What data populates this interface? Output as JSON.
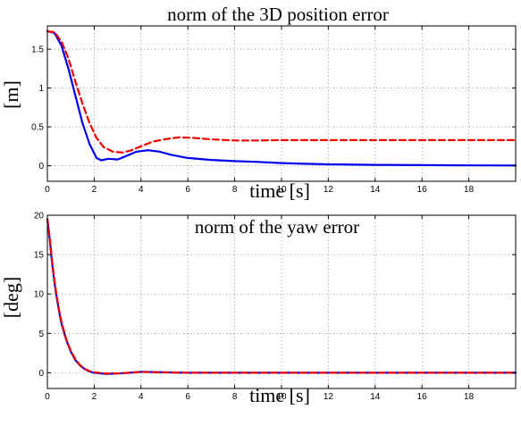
{
  "chart_data": [
    {
      "type": "line",
      "title": "norm of the 3D position error",
      "xlabel": "time [s]",
      "ylabel": "[m]",
      "xlim": [
        0,
        20
      ],
      "ylim": [
        -0.2,
        1.8
      ],
      "xticks": [
        0,
        2,
        4,
        6,
        8,
        10,
        12,
        14,
        16,
        18
      ],
      "yticks": [
        0,
        0.5,
        1,
        1.5
      ],
      "ytick_labels": [
        "0",
        "0.5",
        "1",
        "1.5"
      ],
      "grid": true,
      "series": [
        {
          "color": "#0000ee",
          "style": "solid",
          "points": [
            [
              0,
              1.73
            ],
            [
              0.3,
              1.71
            ],
            [
              0.6,
              1.55
            ],
            [
              0.9,
              1.25
            ],
            [
              1.2,
              0.9
            ],
            [
              1.5,
              0.55
            ],
            [
              1.8,
              0.28
            ],
            [
              2.1,
              0.1
            ],
            [
              2.3,
              0.07
            ],
            [
              2.6,
              0.09
            ],
            [
              3.0,
              0.08
            ],
            [
              3.4,
              0.13
            ],
            [
              3.8,
              0.18
            ],
            [
              4.3,
              0.2
            ],
            [
              4.8,
              0.18
            ],
            [
              5.3,
              0.14
            ],
            [
              6.0,
              0.1
            ],
            [
              7.0,
              0.075
            ],
            [
              8.0,
              0.06
            ],
            [
              9.0,
              0.05
            ],
            [
              10.0,
              0.035
            ],
            [
              11.0,
              0.025
            ],
            [
              12.0,
              0.018
            ],
            [
              14.0,
              0.012
            ],
            [
              16.0,
              0.008
            ],
            [
              18.0,
              0.005
            ],
            [
              20.0,
              0.004
            ]
          ]
        },
        {
          "color": "#ee0000",
          "style": "dashed",
          "points": [
            [
              0,
              1.73
            ],
            [
              0.3,
              1.72
            ],
            [
              0.6,
              1.6
            ],
            [
              0.9,
              1.38
            ],
            [
              1.2,
              1.08
            ],
            [
              1.5,
              0.8
            ],
            [
              1.8,
              0.55
            ],
            [
              2.1,
              0.36
            ],
            [
              2.4,
              0.24
            ],
            [
              2.8,
              0.18
            ],
            [
              3.2,
              0.17
            ],
            [
              3.6,
              0.2
            ],
            [
              4.0,
              0.25
            ],
            [
              4.5,
              0.31
            ],
            [
              5.0,
              0.34
            ],
            [
              5.6,
              0.365
            ],
            [
              6.2,
              0.36
            ],
            [
              7.0,
              0.34
            ],
            [
              8.0,
              0.325
            ],
            [
              9.0,
              0.325
            ],
            [
              10.0,
              0.33
            ],
            [
              12.0,
              0.33
            ],
            [
              14.0,
              0.33
            ],
            [
              16.0,
              0.33
            ],
            [
              18.0,
              0.33
            ],
            [
              20.0,
              0.33
            ]
          ]
        }
      ]
    },
    {
      "type": "line",
      "title": "norm of the yaw error",
      "xlabel": "time [s]",
      "ylabel": "[deg]",
      "xlim": [
        0,
        20
      ],
      "ylim": [
        -2,
        20
      ],
      "xticks": [
        0,
        2,
        4,
        6,
        8,
        10,
        12,
        14,
        16,
        18
      ],
      "yticks": [
        0,
        5,
        10,
        15,
        20
      ],
      "ytick_labels": [
        "0",
        "5",
        "10",
        "15",
        "20"
      ],
      "grid": true,
      "series": [
        {
          "color": "#0000ee",
          "style": "solid",
          "points": [
            [
              0,
              19.5
            ],
            [
              0.1,
              17
            ],
            [
              0.2,
              14
            ],
            [
              0.3,
              11.5
            ],
            [
              0.4,
              9.5
            ],
            [
              0.5,
              7.8
            ],
            [
              0.6,
              6.3
            ],
            [
              0.8,
              4.2
            ],
            [
              1.0,
              2.7
            ],
            [
              1.2,
              1.6
            ],
            [
              1.4,
              0.9
            ],
            [
              1.6,
              0.45
            ],
            [
              1.8,
              0.15
            ],
            [
              2.0,
              0.0
            ],
            [
              2.5,
              -0.15
            ],
            [
              3.0,
              -0.1
            ],
            [
              3.5,
              0.0
            ],
            [
              4.0,
              0.12
            ],
            [
              5.0,
              0.05
            ],
            [
              6.0,
              0.0
            ],
            [
              8.0,
              0.0
            ],
            [
              10.0,
              0.0
            ],
            [
              14.0,
              0.0
            ],
            [
              20.0,
              0.0
            ]
          ]
        },
        {
          "color": "#ee0000",
          "style": "dashed",
          "points": [
            [
              0,
              19.5
            ],
            [
              0.1,
              17.2
            ],
            [
              0.2,
              14.3
            ],
            [
              0.3,
              11.8
            ],
            [
              0.4,
              9.7
            ],
            [
              0.5,
              8.0
            ],
            [
              0.6,
              6.5
            ],
            [
              0.8,
              4.3
            ],
            [
              1.0,
              2.8
            ],
            [
              1.2,
              1.7
            ],
            [
              1.4,
              0.95
            ],
            [
              1.6,
              0.5
            ],
            [
              1.8,
              0.2
            ],
            [
              2.0,
              0.05
            ],
            [
              2.5,
              -0.1
            ],
            [
              3.0,
              -0.08
            ],
            [
              3.5,
              0.0
            ],
            [
              4.0,
              0.1
            ],
            [
              5.0,
              0.04
            ],
            [
              6.0,
              0.0
            ],
            [
              8.0,
              0.0
            ],
            [
              10.0,
              0.0
            ],
            [
              14.0,
              0.0
            ],
            [
              20.0,
              0.0
            ]
          ]
        }
      ]
    }
  ]
}
